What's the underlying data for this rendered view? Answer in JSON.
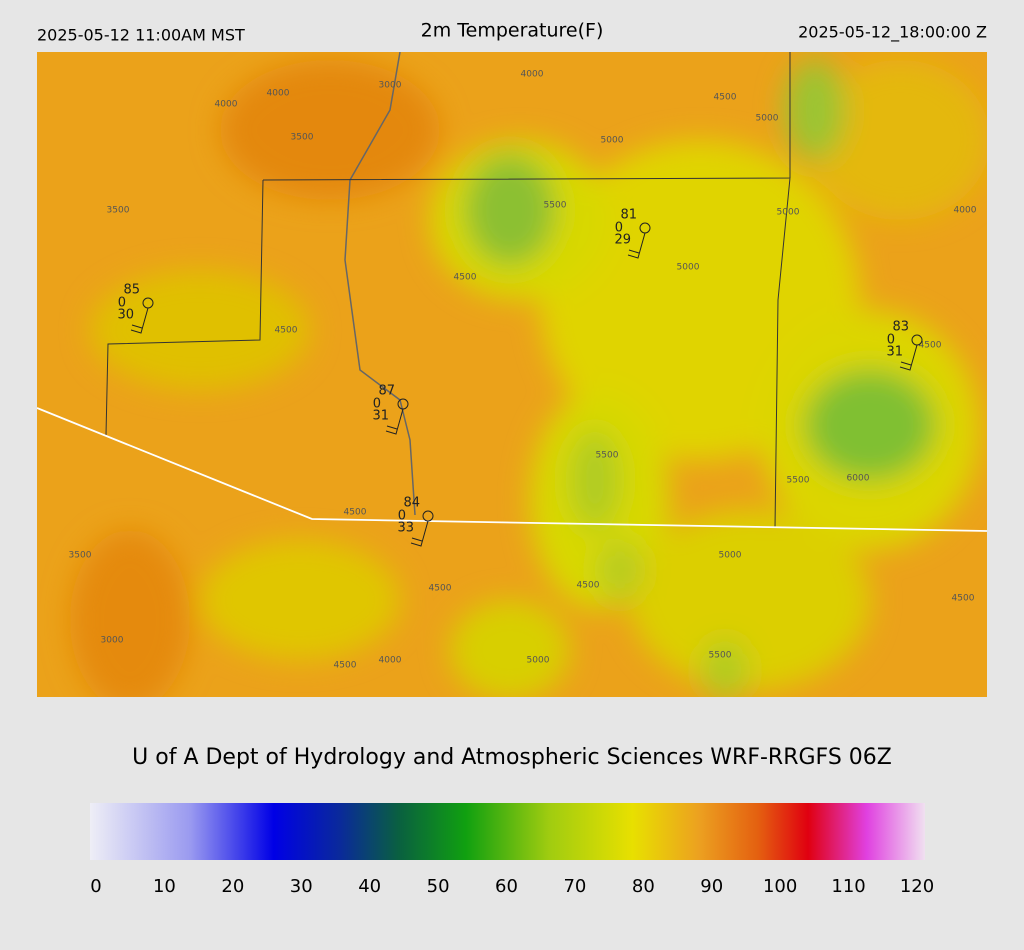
{
  "header": {
    "local_time": "2025-05-12 11:00AM MST",
    "title": "2m Temperature(F)",
    "utc_time": "2025-05-12_18:00:00 Z"
  },
  "stations": [
    {
      "temperature": 85,
      "precip": 0,
      "dewpoint": 30
    },
    {
      "temperature": 81,
      "precip": 0,
      "dewpoint": 29
    },
    {
      "temperature": 87,
      "precip": 0,
      "dewpoint": 31
    },
    {
      "temperature": 84,
      "precip": 0,
      "dewpoint": 33
    },
    {
      "temperature": 83,
      "precip": 0,
      "dewpoint": 31
    }
  ],
  "contour_labels": [
    "4000",
    "4000",
    "3000",
    "3500",
    "4000",
    "4500",
    "5000",
    "3500",
    "5500",
    "5000",
    "5000",
    "4000",
    "4500",
    "5000",
    "4500",
    "4500",
    "5500",
    "5500",
    "6000",
    "4500",
    "3500",
    "4500",
    "4500",
    "5000",
    "4500",
    "3000",
    "4000",
    "4500",
    "5000",
    "5500"
  ],
  "credit": "U of A Dept of Hydrology and Atmospheric Sciences WRF-RRGFS 06Z",
  "colorbar": {
    "ticks": [
      0,
      10,
      20,
      30,
      40,
      50,
      60,
      70,
      80,
      90,
      100,
      110,
      120
    ]
  }
}
